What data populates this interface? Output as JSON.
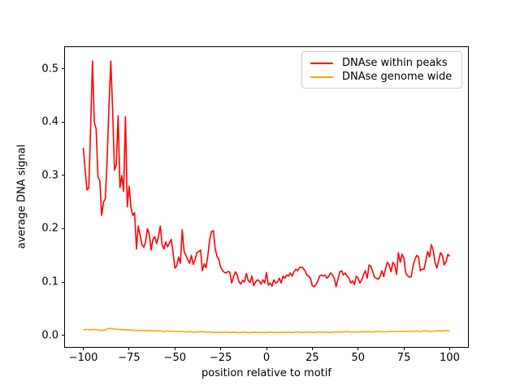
{
  "figure": {
    "background": "#ffffff"
  },
  "chart_data": {
    "type": "line",
    "title": "",
    "xlabel": "position relative to motif",
    "ylabel": "average DNA signal",
    "xlim": [
      -110,
      110
    ],
    "ylim": [
      -0.022,
      0.541
    ],
    "grid": false,
    "xticks": {
      "values": [
        -100,
        -75,
        -50,
        -25,
        0,
        25,
        50,
        75,
        100
      ],
      "labels": [
        "−100",
        "−75",
        "−50",
        "−25",
        "0",
        "25",
        "50",
        "75",
        "100"
      ]
    },
    "yticks": {
      "values": [
        0.0,
        0.1,
        0.2,
        0.3,
        0.4,
        0.5
      ],
      "labels": [
        "0.0",
        "0.1",
        "0.2",
        "0.3",
        "0.4",
        "0.5"
      ]
    },
    "legend": {
      "position": "upper right",
      "entries": [
        {
          "label": "DNAse within peaks",
          "color": "#ff0000"
        },
        {
          "label": "DNAse genome wide",
          "color": "#ffa500"
        }
      ]
    },
    "series": [
      {
        "name": "DNAse within peaks",
        "color": "#ff0000",
        "x": [
          -100,
          -99,
          -98,
          -97,
          -96,
          -95,
          -94,
          -93,
          -92,
          -91,
          -90,
          -89,
          -88,
          -87,
          -86,
          -85,
          -84,
          -83,
          -82,
          -81,
          -80,
          -79,
          -78,
          -77,
          -76,
          -75,
          -74,
          -73,
          -72,
          -71,
          -70,
          -69,
          -68,
          -67,
          -66,
          -65,
          -64,
          -63,
          -62,
          -61,
          -60,
          -59,
          -58,
          -57,
          -56,
          -55,
          -54,
          -53,
          -52,
          -51,
          -50,
          -49,
          -48,
          -47,
          -46,
          -45,
          -44,
          -43,
          -42,
          -41,
          -40,
          -39,
          -38,
          -37,
          -36,
          -35,
          -34,
          -33,
          -32,
          -31,
          -30,
          -29,
          -28,
          -27,
          -26,
          -25,
          -24,
          -23,
          -22,
          -21,
          -20,
          -19,
          -18,
          -17,
          -16,
          -15,
          -14,
          -13,
          -12,
          -11,
          -10,
          -9,
          -8,
          -7,
          -6,
          -5,
          -4,
          -3,
          -2,
          -1,
          0,
          1,
          2,
          3,
          4,
          5,
          6,
          7,
          8,
          9,
          10,
          11,
          12,
          13,
          14,
          15,
          16,
          17,
          18,
          19,
          20,
          21,
          22,
          23,
          24,
          25,
          26,
          27,
          28,
          29,
          30,
          31,
          32,
          33,
          34,
          35,
          36,
          37,
          38,
          39,
          40,
          41,
          42,
          43,
          44,
          45,
          46,
          47,
          48,
          49,
          50,
          51,
          52,
          53,
          54,
          55,
          56,
          57,
          58,
          59,
          60,
          61,
          62,
          63,
          64,
          65,
          66,
          67,
          68,
          69,
          70,
          71,
          72,
          73,
          74,
          75,
          76,
          77,
          78,
          79,
          80,
          81,
          82,
          83,
          84,
          85,
          86,
          87,
          88,
          89,
          90,
          91,
          92,
          93,
          94,
          95,
          96,
          97,
          98,
          99,
          100
        ],
        "y": [
          0.352,
          0.31,
          0.273,
          0.276,
          0.39,
          0.515,
          0.4,
          0.387,
          0.297,
          0.29,
          0.225,
          0.25,
          0.256,
          0.33,
          0.43,
          0.515,
          0.423,
          0.31,
          0.32,
          0.412,
          0.277,
          0.3,
          0.27,
          0.41,
          0.241,
          0.28,
          0.24,
          0.225,
          0.23,
          0.162,
          0.205,
          0.188,
          0.17,
          0.165,
          0.175,
          0.2,
          0.19,
          0.16,
          0.18,
          0.185,
          0.172,
          0.185,
          0.205,
          0.17,
          0.162,
          0.175,
          0.166,
          0.173,
          0.18,
          0.155,
          0.126,
          0.13,
          0.147,
          0.135,
          0.198,
          0.158,
          0.15,
          0.142,
          0.135,
          0.15,
          0.133,
          0.142,
          0.155,
          0.157,
          0.16,
          0.121,
          0.134,
          0.127,
          0.15,
          0.18,
          0.195,
          0.196,
          0.162,
          0.148,
          0.142,
          0.127,
          0.122,
          0.118,
          0.117,
          0.12,
          0.118,
          0.098,
          0.11,
          0.119,
          0.113,
          0.1,
          0.096,
          0.103,
          0.1,
          0.116,
          0.103,
          0.099,
          0.111,
          0.093,
          0.1,
          0.104,
          0.102,
          0.096,
          0.104,
          0.098,
          0.118,
          0.094,
          0.098,
          0.092,
          0.104,
          0.098,
          0.1,
          0.107,
          0.098,
          0.111,
          0.107,
          0.113,
          0.111,
          0.117,
          0.111,
          0.119,
          0.124,
          0.121,
          0.127,
          0.128,
          0.126,
          0.121,
          0.113,
          0.111,
          0.107,
          0.093,
          0.091,
          0.095,
          0.102,
          0.111,
          0.113,
          0.111,
          0.113,
          0.107,
          0.111,
          0.117,
          0.113,
          0.107,
          0.091,
          0.105,
          0.119,
          0.121,
          0.113,
          0.117,
          0.111,
          0.107,
          0.098,
          0.102,
          0.095,
          0.111,
          0.107,
          0.098,
          0.104,
          0.114,
          0.121,
          0.107,
          0.132,
          0.129,
          0.119,
          0.109,
          0.107,
          0.105,
          0.11,
          0.121,
          0.11,
          0.125,
          0.137,
          0.132,
          0.119,
          0.137,
          0.132,
          0.114,
          0.155,
          0.137,
          0.152,
          0.145,
          0.117,
          0.112,
          0.109,
          0.11,
          0.13,
          0.142,
          0.15,
          0.147,
          0.121,
          0.124,
          0.124,
          0.14,
          0.157,
          0.147,
          0.17,
          0.16,
          0.137,
          0.126,
          0.14,
          0.155,
          0.15,
          0.132,
          0.138,
          0.152,
          0.148
        ]
      },
      {
        "name": "DNAse genome wide",
        "color": "#ffa500",
        "x": [
          -100,
          -98,
          -96,
          -94,
          -92,
          -90,
          -88,
          -86,
          -84,
          -82,
          -80,
          -78,
          -76,
          -74,
          -72,
          -70,
          -68,
          -66,
          -64,
          -62,
          -60,
          -58,
          -56,
          -54,
          -52,
          -50,
          -48,
          -46,
          -44,
          -42,
          -40,
          -38,
          -36,
          -34,
          -32,
          -30,
          -28,
          -26,
          -24,
          -22,
          -20,
          -18,
          -16,
          -14,
          -12,
          -10,
          -8,
          -6,
          -4,
          -2,
          0,
          2,
          4,
          6,
          8,
          10,
          12,
          14,
          16,
          18,
          20,
          22,
          24,
          26,
          28,
          30,
          32,
          34,
          36,
          38,
          40,
          42,
          44,
          46,
          48,
          50,
          52,
          54,
          56,
          58,
          60,
          62,
          64,
          66,
          68,
          70,
          72,
          74,
          76,
          78,
          80,
          82,
          84,
          86,
          88,
          90,
          92,
          94,
          96,
          98,
          100
        ],
        "y": [
          0.01,
          0.011,
          0.01,
          0.011,
          0.01,
          0.009,
          0.01,
          0.013,
          0.012,
          0.011,
          0.011,
          0.01,
          0.01,
          0.01,
          0.009,
          0.009,
          0.009,
          0.008,
          0.009,
          0.008,
          0.008,
          0.008,
          0.007,
          0.008,
          0.007,
          0.007,
          0.007,
          0.007,
          0.006,
          0.007,
          0.006,
          0.006,
          0.007,
          0.006,
          0.006,
          0.006,
          0.005,
          0.006,
          0.005,
          0.006,
          0.005,
          0.006,
          0.005,
          0.005,
          0.006,
          0.005,
          0.005,
          0.006,
          0.005,
          0.005,
          0.005,
          0.006,
          0.005,
          0.005,
          0.006,
          0.005,
          0.006,
          0.005,
          0.006,
          0.006,
          0.005,
          0.006,
          0.006,
          0.005,
          0.006,
          0.006,
          0.006,
          0.005,
          0.006,
          0.006,
          0.006,
          0.006,
          0.007,
          0.006,
          0.006,
          0.006,
          0.007,
          0.006,
          0.007,
          0.006,
          0.007,
          0.007,
          0.006,
          0.007,
          0.007,
          0.007,
          0.007,
          0.007,
          0.007,
          0.008,
          0.007,
          0.008,
          0.007,
          0.008,
          0.008,
          0.007,
          0.008,
          0.008,
          0.008,
          0.009,
          0.008
        ]
      }
    ]
  }
}
